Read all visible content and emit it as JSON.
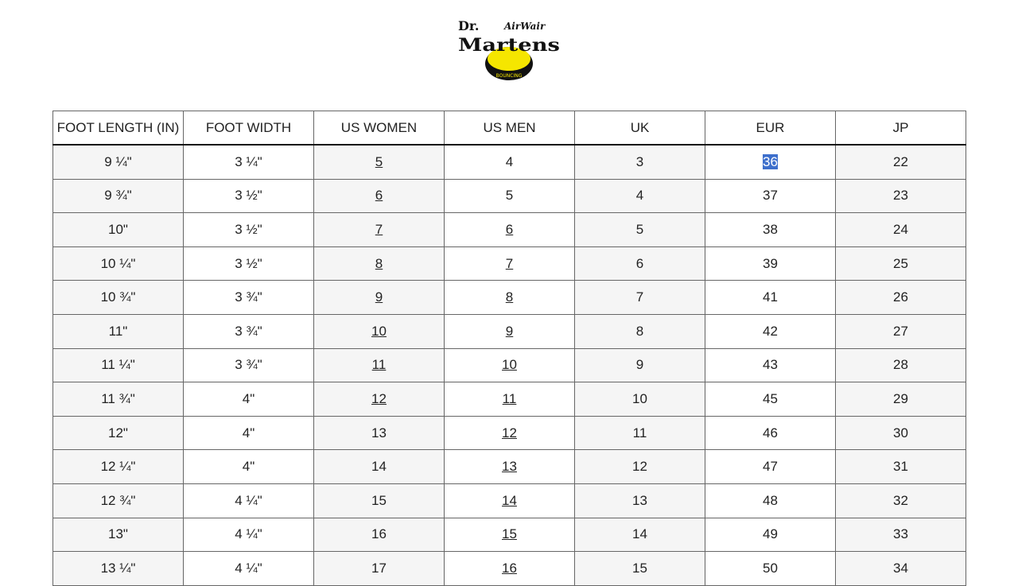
{
  "logo": {
    "text": "Dr. AirWair Martens",
    "colors": {
      "yellow": "#f5e600",
      "black": "#111111"
    }
  },
  "table": {
    "headers": [
      "FOOT LENGTH (IN)",
      "FOOT WIDTH",
      "US WOMEN",
      "US MEN",
      "UK",
      "EUR",
      "JP"
    ],
    "rows": [
      [
        "9 ¼\"",
        "3 ¼\"",
        "5",
        "4",
        "3",
        "36",
        "22"
      ],
      [
        "9 ¾\"",
        "3 ½\"",
        "6",
        "5",
        "4",
        "37",
        "23"
      ],
      [
        "10\"",
        "3 ½\"",
        "7",
        "6",
        "5",
        "38",
        "24"
      ],
      [
        "10 ¼\"",
        "3 ½\"",
        "8",
        "7",
        "6",
        "39",
        "25"
      ],
      [
        "10 ¾\"",
        "3 ¾\"",
        "9",
        "8",
        "7",
        "41",
        "26"
      ],
      [
        "11\"",
        "3 ¾\"",
        "10",
        "9",
        "8",
        "42",
        "27"
      ],
      [
        "11 ¼\"",
        "3 ¾\"",
        "11",
        "10",
        "9",
        "43",
        "28"
      ],
      [
        "11 ¾\"",
        "4\"",
        "12",
        "11",
        "10",
        "45",
        "29"
      ],
      [
        "12\"",
        "4\"",
        "13",
        "12",
        "11",
        "46",
        "30"
      ],
      [
        "12 ¼\"",
        "4\"",
        "14",
        "13",
        "12",
        "47",
        "31"
      ],
      [
        "12 ¾\"",
        "4 ¼\"",
        "15",
        "14",
        "13",
        "48",
        "32"
      ],
      [
        "13\"",
        "4 ¼\"",
        "16",
        "15",
        "14",
        "49",
        "33"
      ],
      [
        "13 ¼\"",
        "4 ¼\"",
        "17",
        "16",
        "15",
        "50",
        "34"
      ]
    ],
    "linked_us_women_rows": [
      0,
      1,
      2,
      3,
      4,
      5,
      6,
      7
    ],
    "linked_us_men_rows": [
      2,
      3,
      4,
      5,
      6,
      7,
      8,
      9,
      10,
      11,
      12
    ],
    "selected_cell": {
      "row": 0,
      "col": 5,
      "highlight": "#3d6fcc"
    }
  }
}
